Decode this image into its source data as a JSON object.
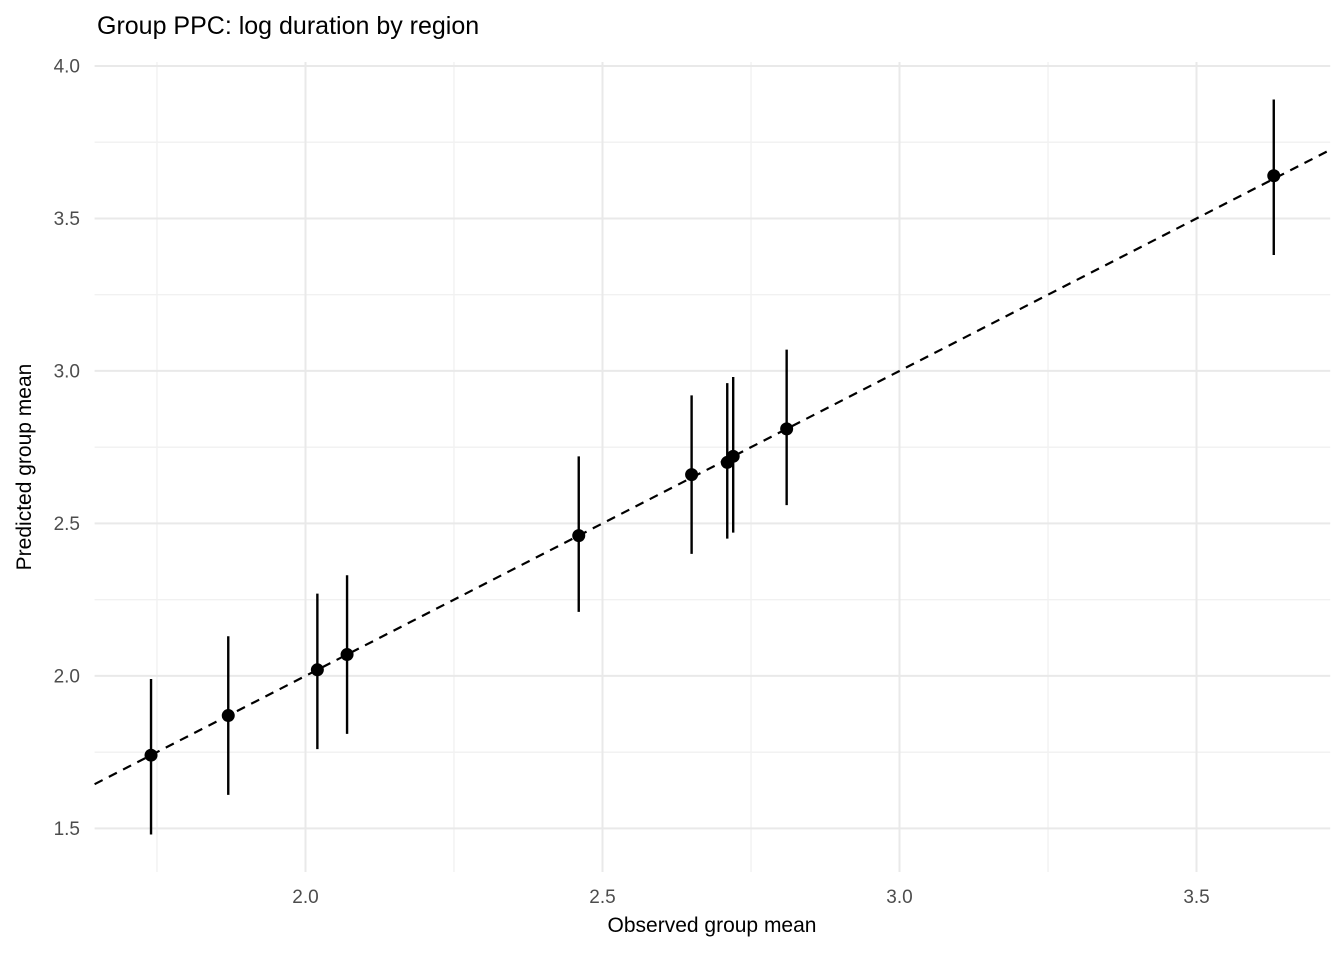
{
  "title": "Group PPC: log duration by region",
  "axes": {
    "x": {
      "label": "Observed group mean",
      "ticks": [
        2.0,
        2.5,
        3.0,
        3.5
      ],
      "tick_labels": [
        "2.0",
        "2.5",
        "3.0",
        "3.5"
      ],
      "minor_ticks": [
        1.75,
        2.25,
        2.75,
        3.25
      ],
      "range": [
        1.645,
        3.725
      ]
    },
    "y": {
      "label": "Predicted group mean",
      "ticks": [
        1.5,
        2.0,
        2.5,
        3.0,
        3.5,
        4.0
      ],
      "tick_labels": [
        "1.5",
        "2.0",
        "2.5",
        "3.0",
        "3.5",
        "4.0"
      ],
      "minor_ticks": [
        1.75,
        2.25,
        2.75,
        3.25,
        3.75
      ],
      "range": [
        1.357,
        4.013
      ]
    }
  },
  "chart_data": {
    "type": "scatter",
    "title": "Group PPC: log duration by region",
    "xlabel": "Observed group mean",
    "ylabel": "Predicted group mean",
    "xlim": [
      1.645,
      3.725
    ],
    "ylim": [
      1.357,
      4.013
    ],
    "grid": "major+minor",
    "legend": "none",
    "reference_line": {
      "kind": "identity y=x",
      "linetype": "dashed",
      "color": "#000000"
    },
    "series_name": "group posterior predictive means with interval bars",
    "points": [
      {
        "observed": 1.74,
        "predicted": 1.74,
        "ci_lower": 1.48,
        "ci_upper": 1.99
      },
      {
        "observed": 1.87,
        "predicted": 1.87,
        "ci_lower": 1.61,
        "ci_upper": 2.13
      },
      {
        "observed": 2.02,
        "predicted": 2.02,
        "ci_lower": 1.76,
        "ci_upper": 2.27
      },
      {
        "observed": 2.07,
        "predicted": 2.07,
        "ci_lower": 1.81,
        "ci_upper": 2.33
      },
      {
        "observed": 2.46,
        "predicted": 2.46,
        "ci_lower": 2.21,
        "ci_upper": 2.72
      },
      {
        "observed": 2.65,
        "predicted": 2.66,
        "ci_lower": 2.4,
        "ci_upper": 2.92
      },
      {
        "observed": 2.71,
        "predicted": 2.7,
        "ci_lower": 2.45,
        "ci_upper": 2.96
      },
      {
        "observed": 2.72,
        "predicted": 2.72,
        "ci_lower": 2.47,
        "ci_upper": 2.98
      },
      {
        "observed": 2.81,
        "predicted": 2.81,
        "ci_lower": 2.56,
        "ci_upper": 3.07
      },
      {
        "observed": 3.63,
        "predicted": 3.64,
        "ci_lower": 3.38,
        "ci_upper": 3.89
      }
    ]
  },
  "colors": {
    "background": "#FFFFFF",
    "point": "#000000",
    "errorbar": "#000000",
    "reference_line": "#000000",
    "grid_major": "#E9E9E9",
    "grid_minor": "#F1F1F1",
    "tick_text": "#4D4D4D",
    "title_text": "#000000"
  }
}
